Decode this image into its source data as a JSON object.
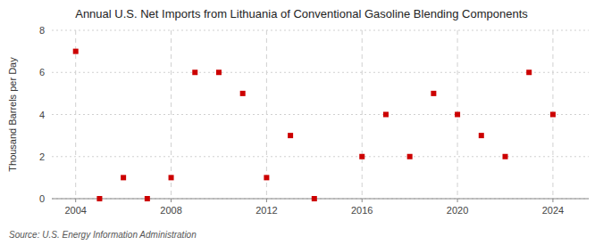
{
  "chart_data": {
    "type": "scatter",
    "title": "Annual U.S. Net Imports from Lithuania of Conventional Gasoline Blending Components",
    "ylabel": "Thousand Barrels per Day",
    "source": "Source: U.S. Energy Information Administration",
    "x": [
      2004,
      2005,
      2006,
      2007,
      2008,
      2009,
      2010,
      2011,
      2012,
      2013,
      2014,
      2016,
      2017,
      2018,
      2019,
      2020,
      2021,
      2022,
      2023,
      2024
    ],
    "values": [
      7,
      0,
      1,
      0,
      1,
      6,
      6,
      5,
      1,
      3,
      0,
      2,
      4,
      2,
      5,
      4,
      3,
      2,
      6,
      4
    ],
    "color": "#cc0000",
    "marker": "square",
    "xlim": [
      2003.0,
      2025.5
    ],
    "ylim": [
      0,
      8
    ],
    "xticks": [
      2004,
      2008,
      2012,
      2016,
      2020,
      2024
    ],
    "yticks": [
      0,
      2,
      4,
      6,
      8
    ],
    "grid": true
  }
}
